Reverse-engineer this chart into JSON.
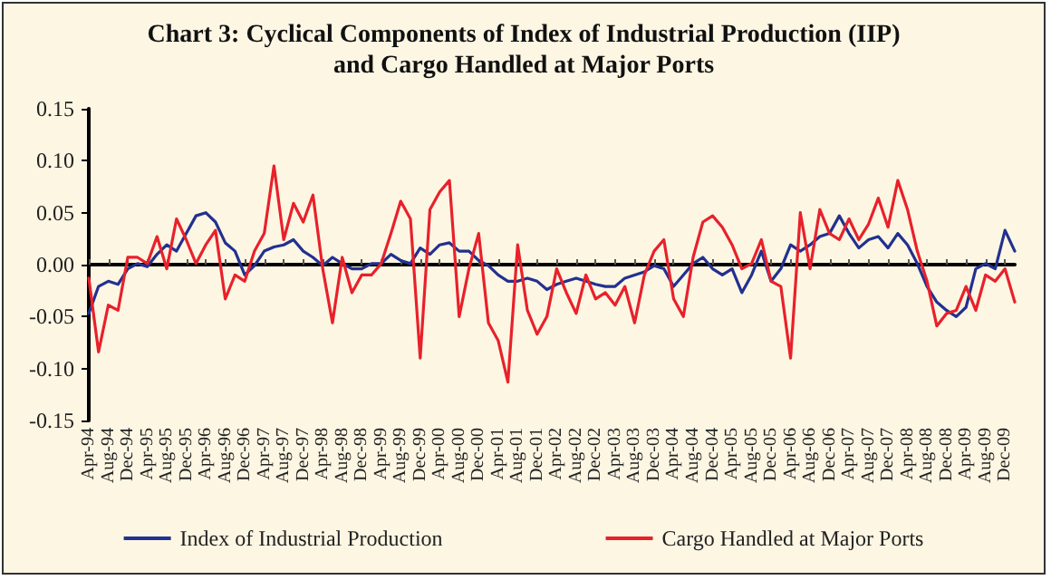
{
  "chart_data": {
    "type": "line",
    "title": "Chart 3: Cyclical Components of Index of Industrial Production (IIP)\nand Cargo Handled at Major Ports",
    "categories": [
      "Apr-94",
      null,
      "Aug-94",
      null,
      "Dec-94",
      null,
      "Apr-95",
      null,
      "Aug-95",
      null,
      "Dec-95",
      null,
      "Apr-96",
      null,
      "Aug-96",
      null,
      "Dec-96",
      null,
      "Apr-97",
      null,
      "Aug-97",
      null,
      "Dec-97",
      null,
      "Apr-98",
      null,
      "Aug-98",
      null,
      "Dec-98",
      null,
      "Apr-99",
      null,
      "Aug-99",
      null,
      "Dec-99",
      null,
      "Apr-00",
      null,
      "Aug-00",
      null,
      "Dec-00",
      null,
      "Apr-01",
      null,
      "Aug-01",
      null,
      "Dec-01",
      null,
      "Apr-02",
      null,
      "Aug-02",
      null,
      "Dec-02",
      null,
      "Apr-03",
      null,
      "Aug-03",
      null,
      "Dec-03",
      null,
      "Apr-04",
      null,
      "Aug-04",
      null,
      "Dec-04",
      null,
      "Apr-05",
      null,
      "Aug-05",
      null,
      "Dec-05",
      null,
      "Apr-06",
      null,
      "Aug-06",
      null,
      "Dec-06",
      null,
      "Apr-07",
      null,
      "Aug-07",
      null,
      "Dec-07",
      null,
      "Apr-08",
      null,
      "Aug-08",
      null,
      "Dec-08",
      null,
      "Apr-09",
      null,
      "Aug-09",
      null,
      "Dec-09",
      null
    ],
    "series": [
      {
        "name": "Index of Industrial Production",
        "color": "#22318f",
        "values": [
          -0.047,
          -0.021,
          -0.016,
          -0.019,
          -0.004,
          0.001,
          -0.002,
          0.01,
          0.019,
          0.013,
          0.03,
          0.047,
          0.05,
          0.041,
          0.021,
          0.013,
          -0.01,
          -0.001,
          0.013,
          0.017,
          0.019,
          0.024,
          0.013,
          0.007,
          -0.001,
          0.007,
          0.001,
          -0.004,
          -0.004,
          0.001,
          0.001,
          0.01,
          0.004,
          0.001,
          0.016,
          0.01,
          0.019,
          0.021,
          0.013,
          0.013,
          0.004,
          -0.001,
          -0.01,
          -0.016,
          -0.016,
          -0.013,
          -0.016,
          -0.024,
          -0.019,
          -0.016,
          -0.013,
          -0.016,
          -0.019,
          -0.021,
          -0.021,
          -0.013,
          -0.01,
          -0.007,
          -0.001,
          -0.004,
          -0.021,
          -0.01,
          0.001,
          0.007,
          -0.004,
          -0.01,
          -0.004,
          -0.027,
          -0.01,
          0.013,
          -0.016,
          -0.004,
          0.019,
          0.013,
          0.019,
          0.027,
          0.03,
          0.047,
          0.03,
          0.016,
          0.024,
          0.027,
          0.016,
          0.03,
          0.019,
          0.001,
          -0.021,
          -0.036,
          -0.044,
          -0.05,
          -0.041,
          -0.004,
          0.001,
          -0.004,
          0.033,
          0.013
        ]
      },
      {
        "name": "Cargo Handled at Major Ports",
        "color": "#e8212b",
        "values": [
          -0.013,
          -0.084,
          -0.039,
          -0.044,
          0.007,
          0.007,
          0.001,
          0.027,
          -0.004,
          0.044,
          0.024,
          0.001,
          0.019,
          0.033,
          -0.033,
          -0.01,
          -0.016,
          0.013,
          0.03,
          0.095,
          0.024,
          0.059,
          0.041,
          0.067,
          -0.004,
          -0.056,
          0.007,
          -0.027,
          -0.01,
          -0.01,
          0.001,
          0.03,
          0.061,
          0.044,
          -0.09,
          0.053,
          0.07,
          0.081,
          -0.05,
          -0.004,
          0.03,
          -0.056,
          -0.073,
          -0.113,
          0.019,
          -0.044,
          -0.067,
          -0.05,
          -0.004,
          -0.027,
          -0.047,
          -0.01,
          -0.033,
          -0.027,
          -0.039,
          -0.021,
          -0.056,
          -0.01,
          0.013,
          0.024,
          -0.033,
          -0.05,
          0.007,
          0.041,
          0.047,
          0.036,
          0.019,
          -0.004,
          0.001,
          0.024,
          -0.016,
          -0.021,
          -0.09,
          0.05,
          -0.004,
          0.053,
          0.03,
          0.024,
          0.044,
          0.024,
          0.039,
          0.064,
          0.036,
          0.081,
          0.053,
          0.013,
          -0.016,
          -0.059,
          -0.047,
          -0.044,
          -0.021,
          -0.044,
          -0.01,
          -0.016,
          -0.004,
          -0.036
        ]
      }
    ],
    "ylim": [
      -0.15,
      0.15
    ],
    "yticks": [
      {
        "value": -0.15,
        "label": "-0.15"
      },
      {
        "value": -0.1,
        "label": "-0.10"
      },
      {
        "value": -0.05,
        "label": "-0.05"
      },
      {
        "value": 0,
        "label": "0.00"
      },
      {
        "value": 0.05,
        "label": "0.05"
      },
      {
        "value": 0.1,
        "label": "0.10"
      },
      {
        "value": 0.15,
        "label": "0.15"
      }
    ],
    "legend": "bottom",
    "marker": "none",
    "line_style": "solid"
  }
}
